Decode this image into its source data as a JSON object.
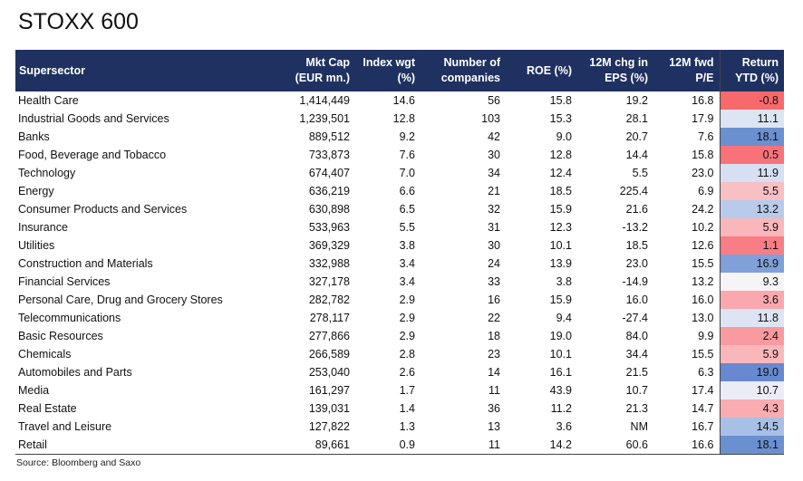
{
  "title": "STOXX 600",
  "columns": [
    "Supersector",
    "Mkt Cap (EUR mn.)",
    "Index wgt (%)",
    "Number of companies",
    "ROE (%)",
    "12M chg in EPS (%)",
    "12M fwd P/E",
    "Return YTD (%)"
  ],
  "rows": [
    [
      "Health Care",
      "1,414,449",
      "14.6",
      "56",
      "15.8",
      "19.2",
      "16.8",
      "-0.8"
    ],
    [
      "Industrial Goods and Services",
      "1,239,501",
      "12.8",
      "103",
      "15.3",
      "28.1",
      "17.9",
      "11.1"
    ],
    [
      "Banks",
      "889,512",
      "9.2",
      "42",
      "9.0",
      "20.7",
      "7.6",
      "18.1"
    ],
    [
      "Food, Beverage and Tobacco",
      "733,873",
      "7.6",
      "30",
      "12.8",
      "14.4",
      "15.8",
      "0.5"
    ],
    [
      "Technology",
      "674,407",
      "7.0",
      "34",
      "12.4",
      "5.5",
      "23.0",
      "11.9"
    ],
    [
      "Energy",
      "636,219",
      "6.6",
      "21",
      "18.5",
      "225.4",
      "6.9",
      "5.5"
    ],
    [
      "Consumer Products and Services",
      "630,898",
      "6.5",
      "32",
      "15.9",
      "21.6",
      "24.2",
      "13.2"
    ],
    [
      "Insurance",
      "533,963",
      "5.5",
      "31",
      "12.3",
      "-13.2",
      "10.2",
      "5.9"
    ],
    [
      "Utilities",
      "369,329",
      "3.8",
      "30",
      "10.1",
      "18.5",
      "12.6",
      "1.1"
    ],
    [
      "Construction and Materials",
      "332,988",
      "3.4",
      "24",
      "13.9",
      "23.0",
      "15.5",
      "16.9"
    ],
    [
      "Financial Services",
      "327,178",
      "3.4",
      "33",
      "3.8",
      "-14.9",
      "13.2",
      "9.3"
    ],
    [
      "Personal Care, Drug and Grocery Stores",
      "282,782",
      "2.9",
      "16",
      "15.9",
      "16.0",
      "16.0",
      "3.6"
    ],
    [
      "Telecommunications",
      "278,117",
      "2.9",
      "22",
      "9.4",
      "-27.4",
      "13.0",
      "11.8"
    ],
    [
      "Basic Resources",
      "277,866",
      "2.9",
      "18",
      "19.0",
      "84.0",
      "9.9",
      "2.4"
    ],
    [
      "Chemicals",
      "266,589",
      "2.8",
      "23",
      "10.1",
      "34.4",
      "15.5",
      "5.9"
    ],
    [
      "Automobiles and Parts",
      "253,040",
      "2.6",
      "14",
      "16.1",
      "21.5",
      "6.3",
      "19.0"
    ],
    [
      "Media",
      "161,297",
      "1.7",
      "11",
      "43.9",
      "10.7",
      "17.4",
      "10.7"
    ],
    [
      "Real Estate",
      "139,031",
      "1.4",
      "36",
      "11.2",
      "21.3",
      "14.7",
      "4.3"
    ],
    [
      "Travel and Leisure",
      "127,822",
      "1.3",
      "13",
      "3.6",
      "NM",
      "16.7",
      "14.5"
    ],
    [
      "Retail",
      "89,661",
      "0.9",
      "11",
      "14.2",
      "60.6",
      "16.6",
      "18.1"
    ]
  ],
  "return_colors": [
    "#f8696b",
    "#dde5f3",
    "#6b90d0",
    "#f8727a",
    "#d6e0f2",
    "#f9c0c4",
    "#b9cbea",
    "#f9b7bb",
    "#f87d84",
    "#7fa0d8",
    "#f7f4f7",
    "#faa8ad",
    "#dde5f4",
    "#f99aa0",
    "#f9b7bb",
    "#6789cf",
    "#ececf7",
    "#f9adb2",
    "#a9c0e6",
    "#6b90d0"
  ],
  "header_color": "#1f3160",
  "source": "Source: Bloomberg and Saxo"
}
